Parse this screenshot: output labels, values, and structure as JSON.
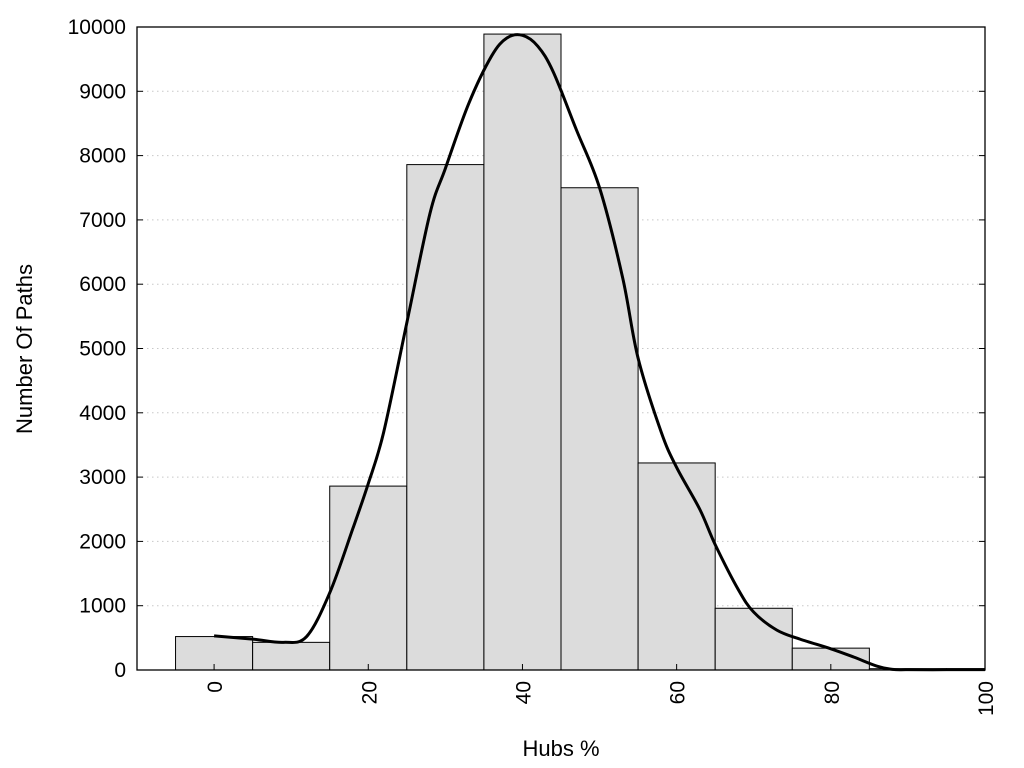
{
  "chart_data": {
    "type": "bar",
    "title": "",
    "xlabel": "Hubs %",
    "ylabel": "Number Of Paths",
    "xlim": [
      -10,
      100
    ],
    "ylim": [
      0,
      10000
    ],
    "x_ticks": [
      0,
      20,
      40,
      60,
      80,
      100
    ],
    "y_ticks": [
      0,
      1000,
      2000,
      3000,
      4000,
      5000,
      6000,
      7000,
      8000,
      9000,
      10000
    ],
    "bin_width": 10,
    "grid": "horizontal-dotted",
    "legend": "none",
    "colors": {
      "bar_fill": "#dcdcdc",
      "bar_stroke": "#000000",
      "curve": "#000000",
      "grid": "#c8c8c8"
    },
    "categories": [
      0,
      10,
      20,
      30,
      40,
      50,
      60,
      70,
      80,
      90,
      100
    ],
    "values": [
      520,
      430,
      2860,
      7860,
      9890,
      7500,
      3220,
      960,
      340,
      20,
      20
    ],
    "curve": {
      "x": [
        0,
        5,
        9,
        12,
        15,
        18,
        20,
        22,
        25,
        28,
        30,
        33,
        36,
        38,
        40,
        42,
        44,
        47,
        50,
        53,
        55,
        58,
        60,
        63,
        65,
        68,
        70,
        73,
        76,
        80,
        83,
        86,
        88,
        90,
        95,
        100
      ],
      "y": [
        530,
        480,
        430,
        520,
        1200,
        2200,
        2900,
        3700,
        5400,
        7100,
        7800,
        8800,
        9550,
        9830,
        9870,
        9700,
        9300,
        8400,
        7500,
        6100,
        4850,
        3700,
        3150,
        2500,
        1950,
        1250,
        900,
        620,
        480,
        330,
        200,
        60,
        10,
        5,
        5,
        5
      ]
    }
  }
}
